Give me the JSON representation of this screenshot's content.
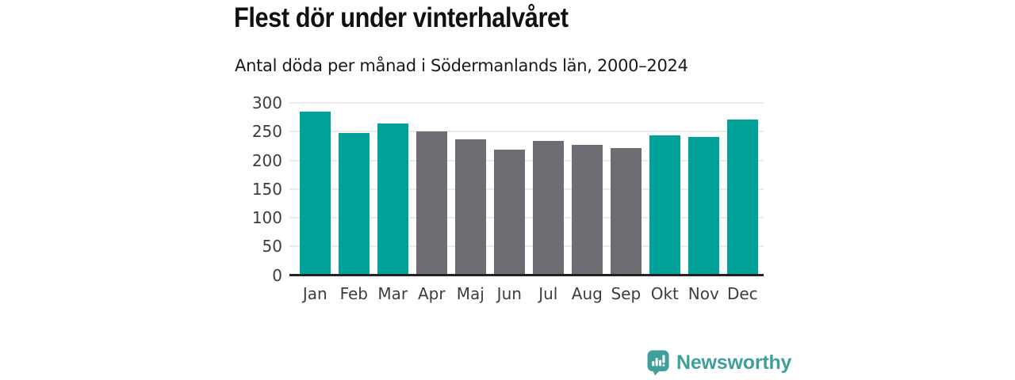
{
  "header": {
    "title": "Flest dör under vinterhalvåret",
    "subtitle": "Antal döda per månad i Södermanlands län, 2000–2024"
  },
  "chart_data": {
    "type": "bar",
    "title": "Flest dör under vinterhalvåret",
    "subtitle": "Antal döda per månad i Södermanlands län, 2000–2024",
    "categories": [
      "Jan",
      "Feb",
      "Mar",
      "Apr",
      "Maj",
      "Jun",
      "Jul",
      "Aug",
      "Sep",
      "Okt",
      "Nov",
      "Dec"
    ],
    "values": [
      285,
      247,
      264,
      250,
      236,
      218,
      234,
      227,
      222,
      244,
      241,
      271
    ],
    "bar_colors": [
      "#00a29a",
      "#00a29a",
      "#00a29a",
      "#6f6c74",
      "#6f6c74",
      "#6f6c74",
      "#6f6c74",
      "#6f6c74",
      "#6f6c74",
      "#00a29a",
      "#00a29a",
      "#00a29a"
    ],
    "highlight_color": "#00a29a",
    "muted_color": "#6f6c74",
    "xlabel": "",
    "ylabel": "",
    "ylim": [
      0,
      300
    ],
    "yticks": [
      0,
      50,
      100,
      150,
      200,
      250,
      300
    ],
    "grid": true,
    "gridline_color": "#eaeaea",
    "axis_color": "#222222",
    "tick_label_color": "#3d3d3d",
    "legend": "none"
  },
  "footer": {
    "logo_text": "Newsworthy",
    "logo_color": "#3f9f9c",
    "logo_icon": "bar-chart-speech-bubble-icon"
  }
}
